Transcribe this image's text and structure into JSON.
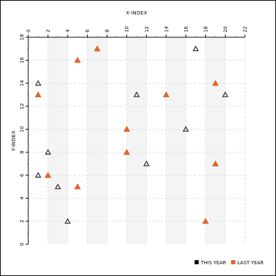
{
  "chart_data": {
    "type": "scatter",
    "title": "",
    "xlabel": "X-INDEX",
    "ylabel": "Y-INDEX",
    "x_axis_position": "top",
    "xlim": [
      0,
      22
    ],
    "ylim": [
      0,
      18
    ],
    "x_ticks": [
      "0",
      "2",
      "4",
      "6",
      "8",
      "10",
      "12",
      "14",
      "16",
      "18",
      "20",
      "22"
    ],
    "y_ticks": [
      "0",
      "2",
      "4",
      "6",
      "8",
      "10",
      "12",
      "14",
      "16",
      "18"
    ],
    "grid": true,
    "legend_position": "bottom-right",
    "series": [
      {
        "name": "THIS YEAR",
        "marker": "hollow-triangle",
        "color": "#333333",
        "points": [
          {
            "x": 1,
            "y": 14
          },
          {
            "x": 1,
            "y": 6
          },
          {
            "x": 2,
            "y": 8
          },
          {
            "x": 3,
            "y": 5
          },
          {
            "x": 4,
            "y": 2
          },
          {
            "x": 11,
            "y": 13
          },
          {
            "x": 12,
            "y": 7
          },
          {
            "x": 16,
            "y": 10
          },
          {
            "x": 17,
            "y": 17
          },
          {
            "x": 20,
            "y": 13
          }
        ]
      },
      {
        "name": "LAST YEAR",
        "marker": "filled-triangle",
        "color": "#e0662e",
        "points": [
          {
            "x": 1,
            "y": 13
          },
          {
            "x": 2,
            "y": 6
          },
          {
            "x": 5,
            "y": 16
          },
          {
            "x": 5,
            "y": 5
          },
          {
            "x": 7,
            "y": 17
          },
          {
            "x": 10,
            "y": 10
          },
          {
            "x": 10,
            "y": 8
          },
          {
            "x": 14,
            "y": 13
          },
          {
            "x": 18,
            "y": 2
          },
          {
            "x": 19,
            "y": 14
          },
          {
            "x": 19,
            "y": 7
          }
        ]
      }
    ]
  },
  "colors": {
    "axis": "#000000",
    "grid": "#dddddd",
    "band": "#f4f4f4",
    "this_year": "#333333",
    "last_year": "#e0662e"
  }
}
